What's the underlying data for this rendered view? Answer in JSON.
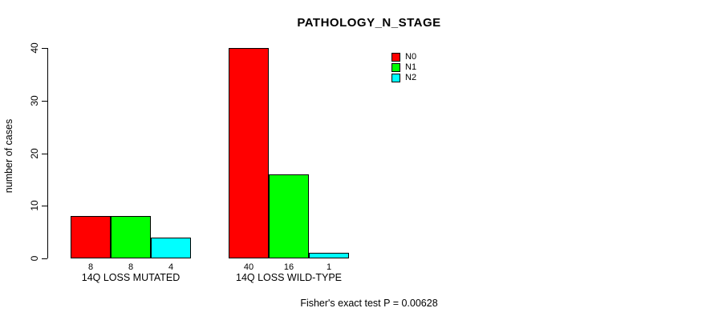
{
  "chart_data": {
    "type": "bar",
    "title": "PATHOLOGY_N_STAGE",
    "ylabel": "number of cases",
    "xlabel": "",
    "ylim": [
      0,
      40
    ],
    "yticks": [
      0,
      10,
      20,
      30,
      40
    ],
    "grid": false,
    "legend_position": "top-right",
    "categories": [
      "14Q LOSS MUTATED",
      "14Q LOSS WILD-TYPE"
    ],
    "series": [
      {
        "name": "N0",
        "color": "#ff0000",
        "values": [
          8,
          40
        ]
      },
      {
        "name": "N1",
        "color": "#00ff00",
        "values": [
          8,
          16
        ]
      },
      {
        "name": "N2",
        "color": "#00ffff",
        "values": [
          4,
          1
        ]
      }
    ],
    "bar_value_labels": [
      [
        "8",
        "8",
        "4"
      ],
      [
        "40",
        "16",
        "1"
      ]
    ],
    "annotation": "Fisher's exact test P = 0.00628",
    "colors": {
      "axis": "#000000",
      "bar_border": "#000000",
      "background": "#ffffff",
      "text": "#000000"
    }
  }
}
